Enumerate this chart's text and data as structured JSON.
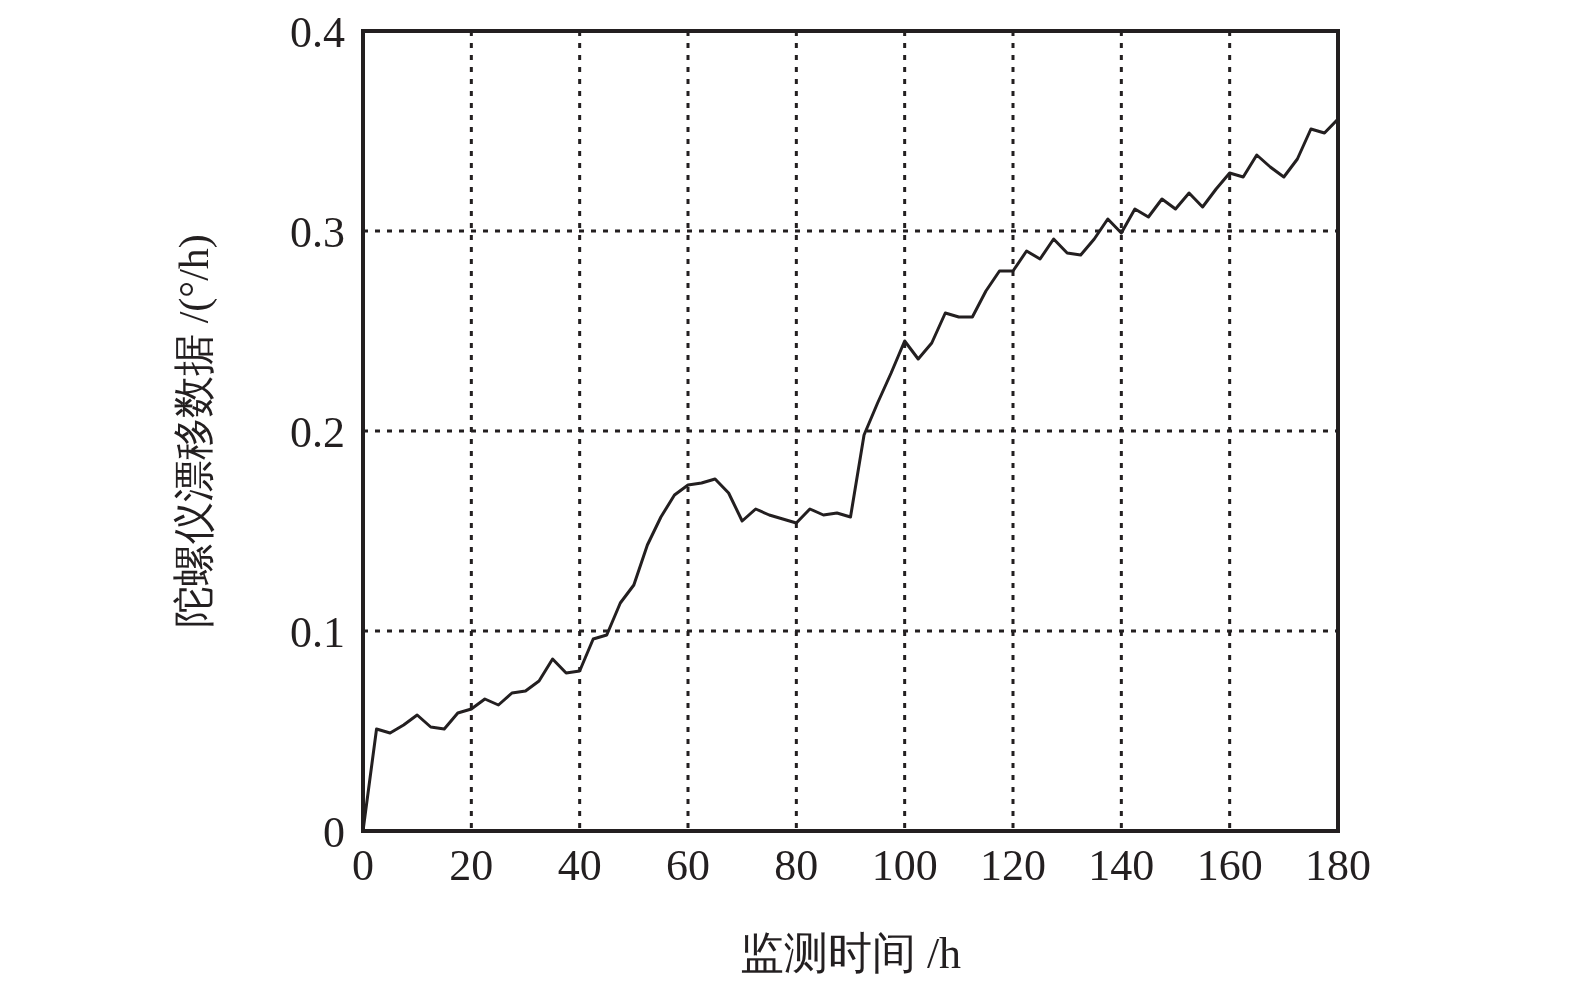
{
  "chart_data": {
    "type": "line",
    "xlabel": "监测时间 /h",
    "ylabel": "陀螺仪漂移数据 /(°/h)",
    "x": [
      0,
      2.5,
      5,
      7.5,
      10,
      12.5,
      15,
      17.5,
      20,
      22.5,
      25,
      27.5,
      30,
      32.5,
      35,
      37.5,
      40,
      42.5,
      45,
      47.5,
      50,
      52.5,
      55,
      57.5,
      60,
      62.5,
      65,
      67.5,
      70,
      72.5,
      75,
      77.5,
      80,
      82.5,
      85,
      87.5,
      90,
      92.5,
      95,
      97.5,
      100,
      102.5,
      105,
      107.5,
      110,
      112.5,
      115,
      117.5,
      120,
      122.5,
      125,
      127.5,
      130,
      132.5,
      135,
      137.5,
      140,
      142.5,
      145,
      147.5,
      150,
      152.5,
      155,
      157.5,
      160,
      162.5,
      165,
      167.5,
      170,
      172.5,
      175,
      177.5,
      180
    ],
    "values": [
      0,
      0.051,
      0.049,
      0.053,
      0.058,
      0.052,
      0.051,
      0.059,
      0.061,
      0.066,
      0.063,
      0.069,
      0.07,
      0.075,
      0.086,
      0.079,
      0.08,
      0.096,
      0.098,
      0.114,
      0.123,
      0.143,
      0.157,
      0.168,
      0.173,
      0.174,
      0.176,
      0.169,
      0.155,
      0.161,
      0.158,
      0.156,
      0.154,
      0.161,
      0.158,
      0.159,
      0.157,
      0.198,
      0.214,
      0.229,
      0.245,
      0.236,
      0.244,
      0.259,
      0.257,
      0.257,
      0.27,
      0.28,
      0.28,
      0.29,
      0.286,
      0.296,
      0.289,
      0.288,
      0.296,
      0.306,
      0.299,
      0.311,
      0.307,
      0.316,
      0.311,
      0.319,
      0.312,
      0.321,
      0.329,
      0.327,
      0.338,
      0.332,
      0.327,
      0.336,
      0.351,
      0.349,
      0.356
    ],
    "color": "#231f20",
    "line_style": "solid",
    "xlim": [
      0,
      180
    ],
    "xticks": [
      0,
      20,
      40,
      60,
      80,
      100,
      120,
      140,
      160,
      180
    ],
    "ylim": [
      0,
      0.4
    ],
    "yticks": [
      0,
      0.1,
      0.2,
      0.3,
      0.4
    ],
    "grid": true
  }
}
